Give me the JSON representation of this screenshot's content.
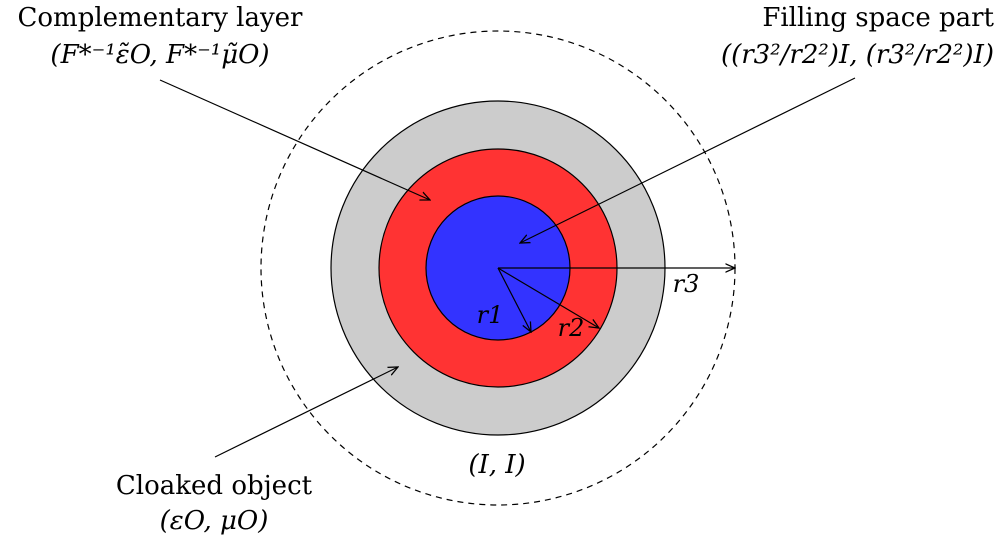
{
  "labels": {
    "complementary_title": "Complementary layer",
    "complementary_expr": "(F*⁻¹ε̃O, F*⁻¹μ̃O)",
    "filling_title": "Filling space part",
    "filling_expr": "((r3²/r2²)I, (r3²/r2²)I)",
    "cloaked_title": "Cloaked object",
    "cloaked_expr": "(εO, μO)",
    "vacuum_expr": "(I, I)",
    "r1": "r1",
    "r2": "r2",
    "r3": "r3"
  },
  "colors": {
    "outer_ring": "#cccccc",
    "middle_ring": "#ff3333",
    "inner_disk": "#3333ff",
    "stroke": "#000000"
  }
}
